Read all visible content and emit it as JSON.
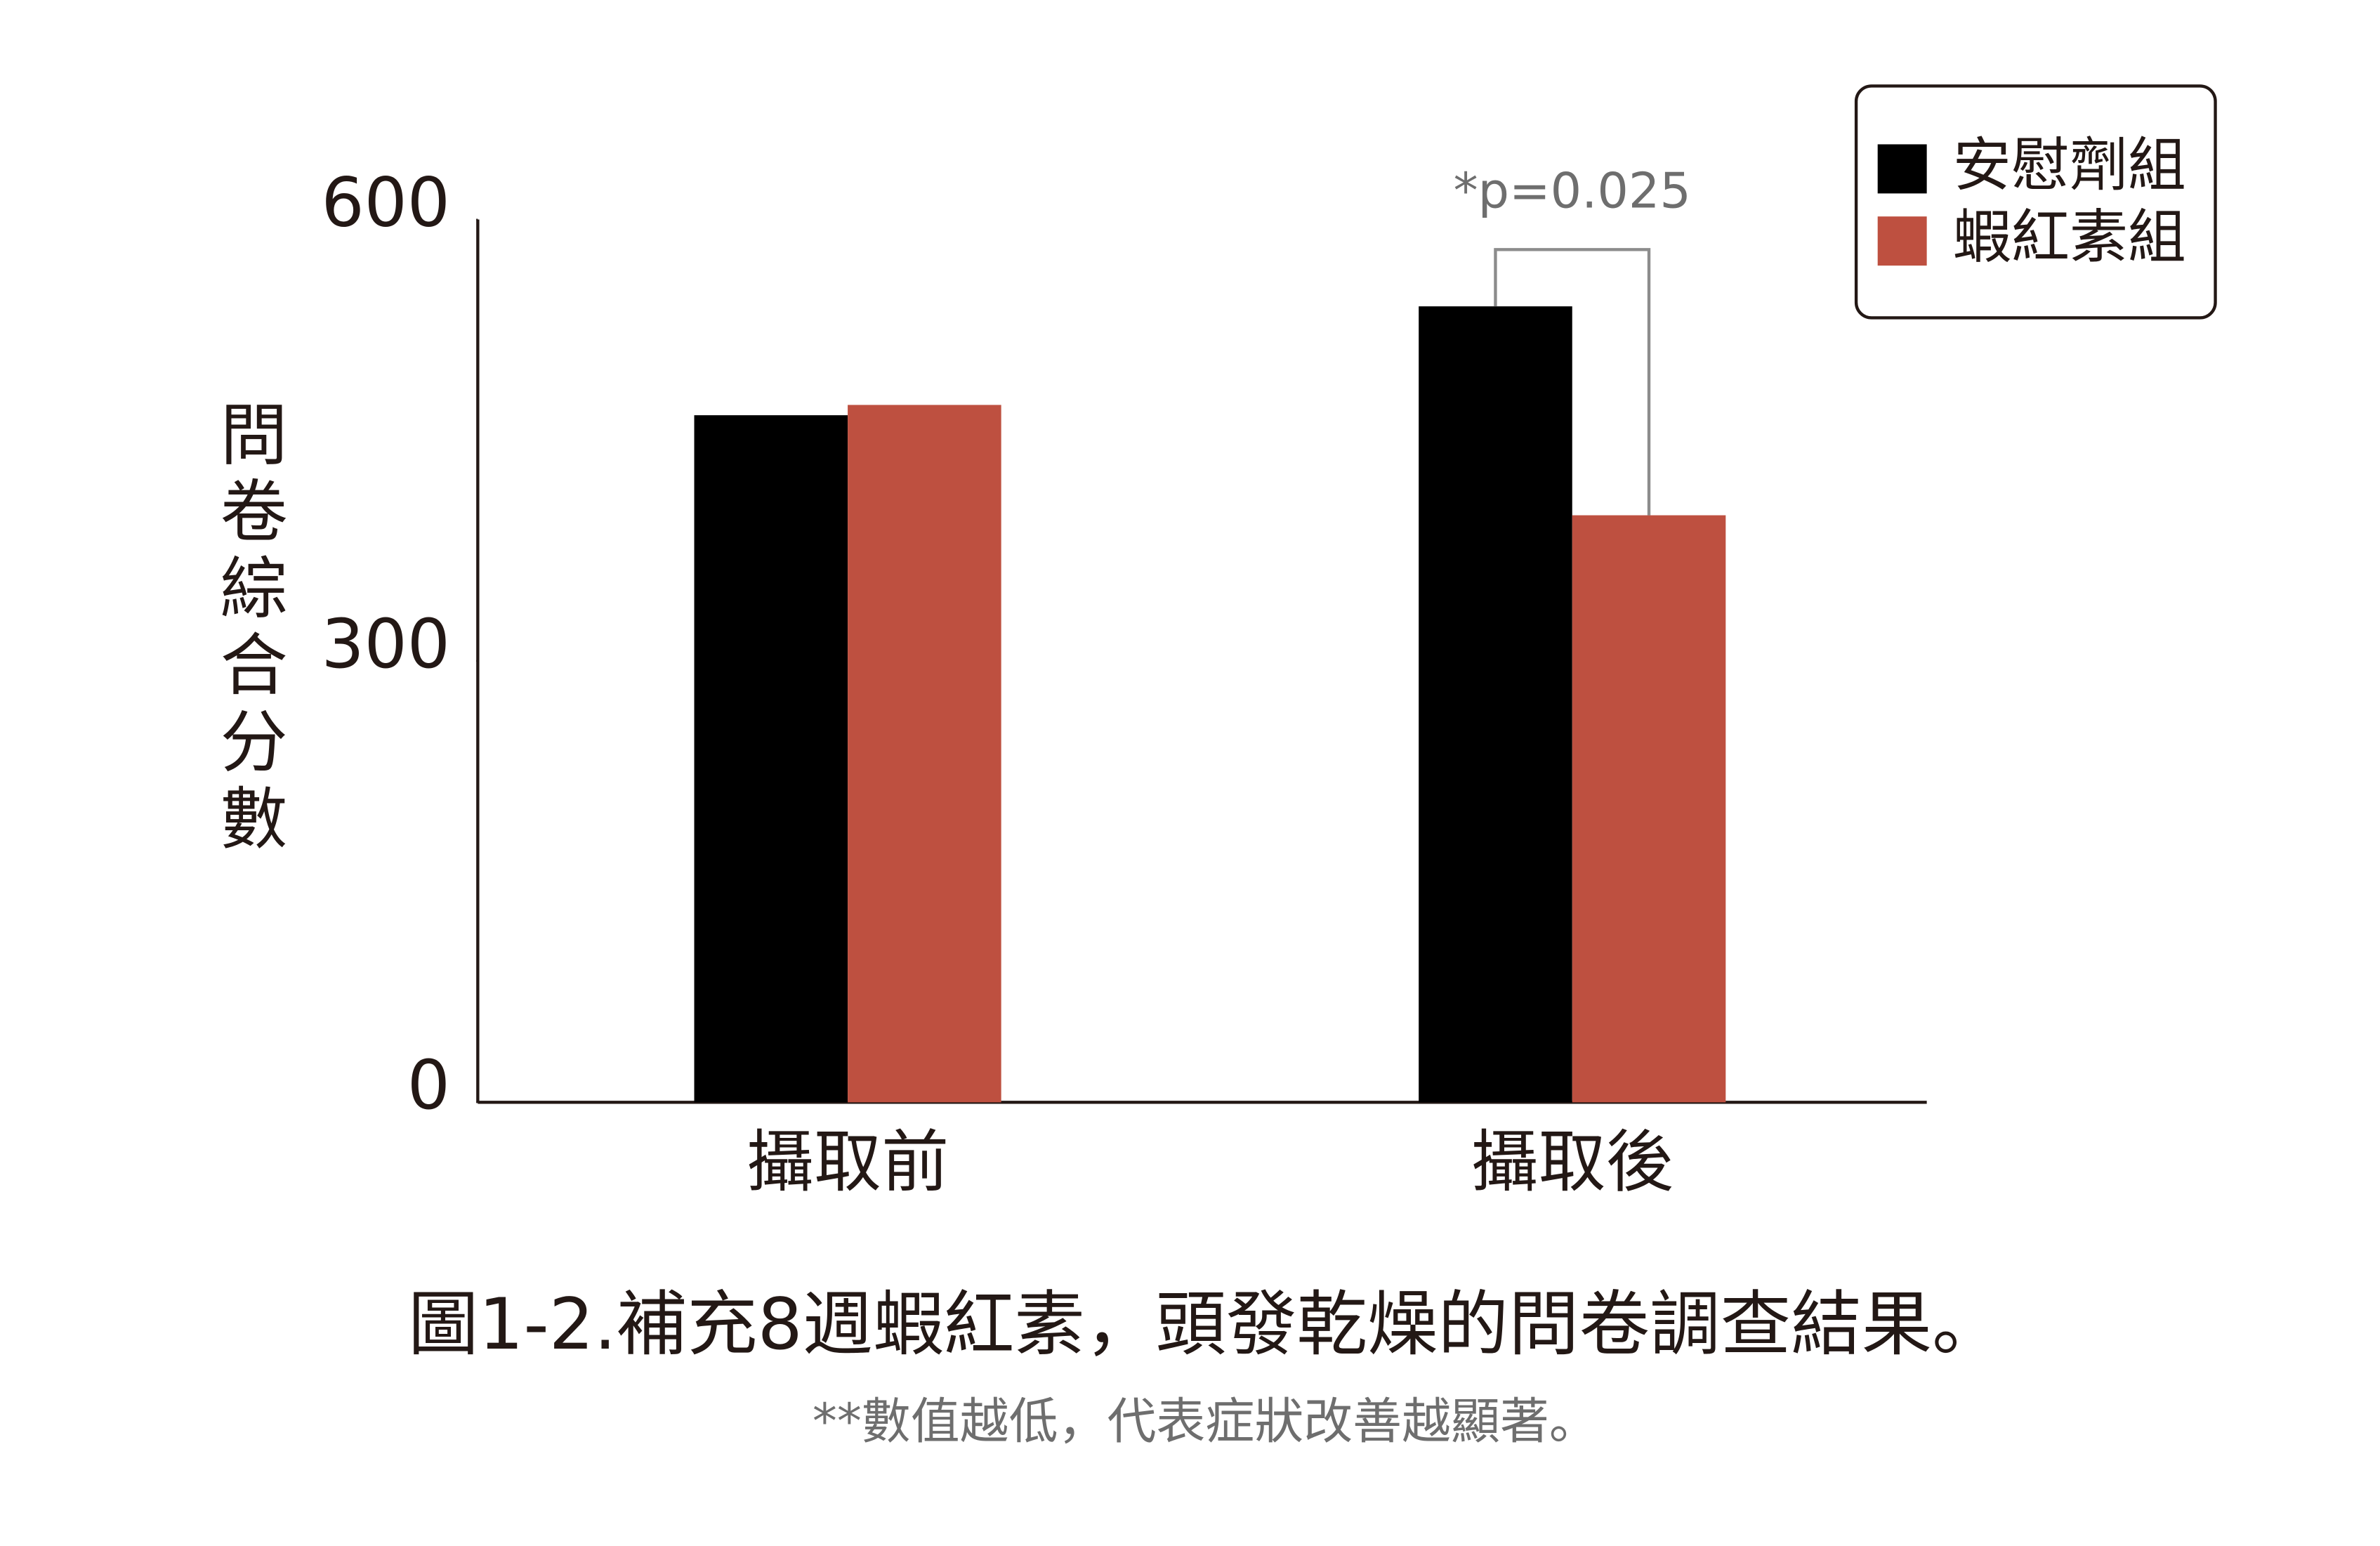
{
  "chart_data": {
    "type": "bar",
    "ylabel": "問卷綜合分數",
    "categories": [
      "攝取前",
      "攝取後"
    ],
    "series": [
      {
        "name": "安慰劑組",
        "color": "#000000",
        "values": [
          467,
          541
        ]
      },
      {
        "name": "蝦紅素組",
        "color": "#be5040",
        "values": [
          474,
          399
        ]
      }
    ],
    "ylim": [
      0,
      600
    ],
    "yticks": [
      0,
      300,
      600
    ],
    "grid": false,
    "legend": "top-right",
    "annotation": "*p=0.025",
    "caption": "圖1-2.補充8週蝦紅素，頭發乾燥的問卷調查結果。",
    "note": "**數值越低，代表症狀改善越顯著。"
  }
}
